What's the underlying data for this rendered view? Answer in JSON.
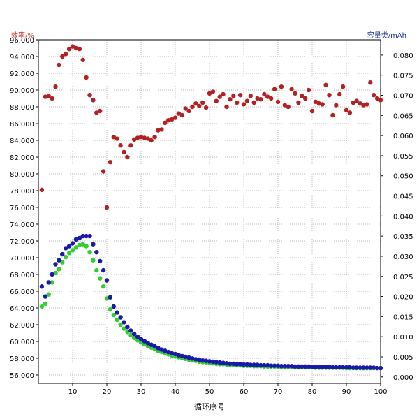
{
  "chart_data": {
    "type": "scatter",
    "xlabel": "循环序号",
    "ylabel_left": "效率/%",
    "ylabel_right": "容量类/mAh",
    "xlim": [
      0,
      100
    ],
    "ylim_left": [
      55,
      96
    ],
    "ylim_right": [
      -0.0016,
      0.0838
    ],
    "x_ticks": [
      10,
      20,
      30,
      40,
      50,
      60,
      70,
      80,
      90,
      100
    ],
    "y_ticks_left": [
      "56.000",
      "58.000",
      "60.000",
      "62.000",
      "64.000",
      "66.000",
      "68.000",
      "70.000",
      "72.000",
      "74.000",
      "76.000",
      "78.000",
      "80.000",
      "82.000",
      "84.000",
      "86.000",
      "88.000",
      "90.000",
      "92.000",
      "94.000",
      "96.000"
    ],
    "y_ticks_right": [
      "0.000",
      "0.005",
      "0.010",
      "0.015",
      "0.020",
      "0.025",
      "0.030",
      "0.035",
      "0.040",
      "0.045",
      "0.050",
      "0.055",
      "0.060",
      "0.065",
      "0.070",
      "0.075",
      "0.080"
    ],
    "grid": true,
    "colors": {
      "efficiency": "#b22222",
      "charge": "#1a1aa8",
      "discharge": "#33cc33"
    },
    "series": [
      {
        "axis": "left",
        "color": "#b22222",
        "x": [
          1,
          2,
          3,
          4,
          5,
          6,
          7,
          8,
          9,
          10,
          11,
          12,
          13,
          14,
          15,
          16,
          17,
          18,
          19,
          20,
          21,
          22,
          23,
          24,
          25,
          26,
          27,
          28,
          29,
          30,
          31,
          32,
          33,
          34,
          35,
          36,
          37,
          38,
          39,
          40,
          41,
          42,
          43,
          44,
          45,
          46,
          47,
          48,
          49,
          50,
          51,
          52,
          53,
          54,
          55,
          56,
          57,
          58,
          59,
          60,
          61,
          62,
          63,
          64,
          65,
          66,
          67,
          68,
          69,
          70,
          71,
          72,
          73,
          74,
          75,
          76,
          77,
          78,
          79,
          80,
          81,
          82,
          83,
          84,
          85,
          86,
          87,
          88,
          89,
          90,
          91,
          92,
          93,
          94,
          95,
          96,
          97,
          98,
          99,
          100
        ],
        "values": [
          78.1,
          89.2,
          89.3,
          89.0,
          90.4,
          93.0,
          94.0,
          94.3,
          94.9,
          95.2,
          95.0,
          94.9,
          93.6,
          91.5,
          89.4,
          88.8,
          87.3,
          87.5,
          80.3,
          76.0,
          81.4,
          84.4,
          84.2,
          83.4,
          82.6,
          82.0,
          83.4,
          84.1,
          84.3,
          84.4,
          84.3,
          84.2,
          84.0,
          84.4,
          85.2,
          85.3,
          86.1,
          86.4,
          86.5,
          86.7,
          87.2,
          87.0,
          87.8,
          87.5,
          88.0,
          88.4,
          88.1,
          88.5,
          87.9,
          89.6,
          89.8,
          88.7,
          89.2,
          89.5,
          88.0,
          88.9,
          89.3,
          88.5,
          89.4,
          88.3,
          88.7,
          89.3,
          88.5,
          89.0,
          88.9,
          89.5,
          89.2,
          89.0,
          90.1,
          88.6,
          90.4,
          88.2,
          88.0,
          90.1,
          89.6,
          88.5,
          89.3,
          89.0,
          90.0,
          87.5,
          88.6,
          88.4,
          88.3,
          90.6,
          89.4,
          87.0,
          88.2,
          89.5,
          90.4,
          87.6,
          87.3,
          88.5,
          88.7,
          88.4,
          88.2,
          88.3,
          90.9,
          89.4,
          89.0,
          88.8
        ]
      },
      {
        "axis": "right",
        "color": "#1a1aa8",
        "x": [
          1,
          2,
          3,
          4,
          5,
          6,
          7,
          8,
          9,
          10,
          11,
          12,
          13,
          14,
          15,
          16,
          17,
          18,
          19,
          20,
          21,
          22,
          23,
          24,
          25,
          26,
          27,
          28,
          29,
          30,
          31,
          32,
          33,
          34,
          35,
          36,
          37,
          38,
          39,
          40,
          41,
          42,
          43,
          44,
          45,
          46,
          47,
          48,
          49,
          50,
          51,
          52,
          53,
          54,
          55,
          56,
          57,
          58,
          59,
          60,
          61,
          62,
          63,
          64,
          65,
          66,
          67,
          68,
          69,
          70,
          71,
          72,
          73,
          74,
          75,
          76,
          77,
          78,
          79,
          80,
          81,
          82,
          83,
          84,
          85,
          86,
          87,
          88,
          89,
          90,
          91,
          92,
          93,
          94,
          95,
          96,
          97,
          98,
          99,
          100
        ],
        "values": [
          0.0225,
          0.02,
          0.0235,
          0.0255,
          0.028,
          0.029,
          0.0305,
          0.032,
          0.0325,
          0.0332,
          0.0342,
          0.0345,
          0.035,
          0.035,
          0.035,
          0.033,
          0.031,
          0.0288,
          0.0265,
          0.024,
          0.0198,
          0.0175,
          0.016,
          0.0148,
          0.0136,
          0.0124,
          0.0115,
          0.0107,
          0.01,
          0.0094,
          0.0089,
          0.0084,
          0.008,
          0.0076,
          0.0072,
          0.0068,
          0.0065,
          0.0062,
          0.0059,
          0.0057,
          0.0054,
          0.0052,
          0.005,
          0.0048,
          0.0046,
          0.0044,
          0.0043,
          0.0041,
          0.004,
          0.0039,
          0.0038,
          0.0037,
          0.0036,
          0.0035,
          0.0034,
          0.0033,
          0.0033,
          0.0032,
          0.0032,
          0.0031,
          0.0031,
          0.003,
          0.003,
          0.003,
          0.0029,
          0.0029,
          0.0029,
          0.0028,
          0.0028,
          0.0028,
          0.0027,
          0.0027,
          0.0027,
          0.0027,
          0.0026,
          0.0026,
          0.0026,
          0.0026,
          0.0026,
          0.0025,
          0.0025,
          0.0025,
          0.0025,
          0.0025,
          0.0025,
          0.0024,
          0.0024,
          0.0024,
          0.0024,
          0.0024,
          0.0024,
          0.0023,
          0.0023,
          0.0023,
          0.0023,
          0.0023,
          0.0023,
          0.0023,
          0.0022,
          0.0022
        ]
      },
      {
        "axis": "right",
        "color": "#33cc33",
        "x": [
          1,
          2,
          3,
          4,
          5,
          6,
          7,
          8,
          9,
          10,
          11,
          12,
          13,
          14,
          15,
          16,
          17,
          18,
          19,
          20,
          21,
          22,
          23,
          24,
          25,
          26,
          27,
          28,
          29,
          30,
          31,
          32,
          33,
          34,
          35,
          36,
          37,
          38,
          39,
          40,
          41,
          42,
          43,
          44,
          45,
          46,
          47,
          48,
          49,
          50,
          51,
          52,
          53,
          54,
          55,
          56,
          57,
          58,
          59,
          60,
          61,
          62,
          63,
          64,
          65,
          66,
          67,
          68,
          69,
          70,
          71,
          72,
          73,
          74,
          75,
          76,
          77,
          78,
          79,
          80,
          81,
          82,
          83,
          84,
          85,
          86,
          87,
          88,
          89,
          90,
          91,
          92,
          93,
          94,
          95,
          96,
          97,
          98,
          99,
          100
        ],
        "values": [
          0.0175,
          0.0182,
          0.0205,
          0.0235,
          0.0258,
          0.0268,
          0.0285,
          0.0298,
          0.0308,
          0.0315,
          0.0322,
          0.0328,
          0.033,
          0.0325,
          0.031,
          0.029,
          0.0265,
          0.0245,
          0.0225,
          0.0195,
          0.0168,
          0.0154,
          0.0142,
          0.013,
          0.012,
          0.0112,
          0.0104,
          0.0097,
          0.0091,
          0.0086,
          0.0081,
          0.0077,
          0.0073,
          0.0069,
          0.0065,
          0.0062,
          0.0059,
          0.0056,
          0.0053,
          0.0051,
          0.0049,
          0.0047,
          0.0045,
          0.0043,
          0.0041,
          0.004,
          0.0038,
          0.0037,
          0.0036,
          0.0035,
          0.0034,
          0.0033,
          0.0032,
          0.0032,
          0.0031,
          0.003,
          0.003,
          0.0029,
          0.0029,
          0.0028,
          0.0028,
          0.0028,
          0.0027,
          0.0027,
          0.0027,
          0.0026,
          0.0026,
          0.0026,
          0.0026,
          0.0025,
          0.0025,
          0.0025,
          0.0025,
          0.0025,
          0.0024,
          0.0024,
          0.0024,
          0.0024,
          0.0024,
          0.0024,
          0.0023,
          0.0023,
          0.0023,
          0.0023,
          0.0023,
          0.0023,
          0.0023,
          0.0023,
          0.0023,
          0.0022,
          0.0022,
          0.0022,
          0.0022,
          0.0022,
          0.0022,
          0.0022,
          0.0022,
          0.0022,
          0.0022,
          0.0022
        ]
      }
    ]
  }
}
